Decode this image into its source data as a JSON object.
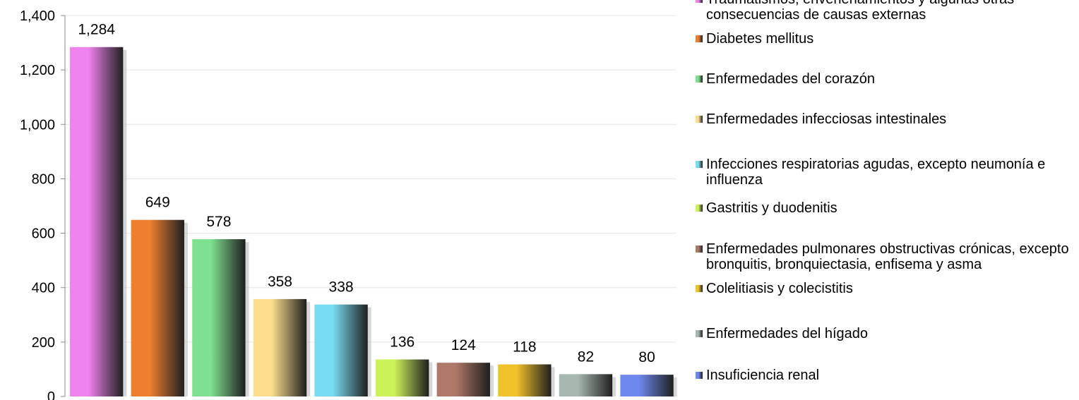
{
  "chart_data": {
    "type": "bar",
    "title": "",
    "xlabel": "",
    "ylabel": "",
    "ylim": [
      0,
      1400
    ],
    "yticks": [
      "0",
      "200",
      "400",
      "600",
      "800",
      "1,000",
      "1,200",
      "1,400"
    ],
    "ytick_values": [
      0,
      200,
      400,
      600,
      800,
      1000,
      1200,
      1400
    ],
    "grid": true,
    "legend_position": "right",
    "categories": [
      "Traumatismos, envenenamientos y algunas otras consecuencias de causas externas",
      "Diabetes mellitus",
      "Enfermedades del corazón",
      "Enfermedades infecciosas intestinales",
      "Infecciones respiratorias agudas, excepto neumonía e influenza",
      "Gastritis y duodenitis",
      "Enfermedades pulmonares obstructivas crónicas, excepto bronquitis, bronquiectasia, enfisema y asma",
      "Colelitiasis y colecistitis",
      "Enfermedades del hígado",
      "Insuficiencia renal"
    ],
    "values": [
      1284,
      649,
      578,
      358,
      338,
      136,
      124,
      118,
      82,
      80
    ],
    "data_labels": [
      "1,284",
      "649",
      "578",
      "358",
      "338",
      "136",
      "124",
      "118",
      "82",
      "80"
    ],
    "colors": [
      "#ee82ee",
      "#ef7f2f",
      "#7fe08f",
      "#fadc8c",
      "#78dcf0",
      "#ccf25a",
      "#b07868",
      "#f2c22a",
      "#a8b8b0",
      "#6f88ee"
    ]
  }
}
